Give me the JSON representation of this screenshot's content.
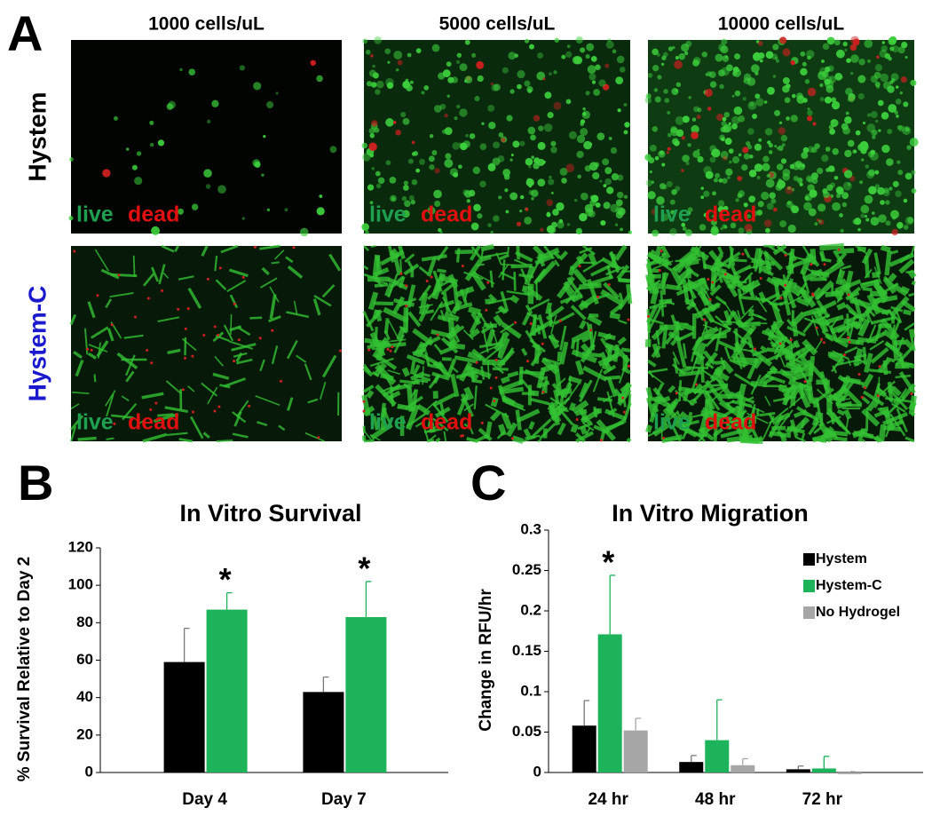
{
  "panel_a": {
    "label": "A",
    "columns": [
      "1000 cells/uL",
      "5000 cells/uL",
      "10000 cells/uL"
    ],
    "rows": [
      "Hystem",
      "Hystem-C"
    ],
    "image_labels": [
      [
        "live",
        "dead"
      ],
      [
        "live",
        "dead"
      ],
      [
        "live",
        "dead"
      ],
      [
        "live",
        "dead"
      ],
      [
        "live",
        "dead"
      ],
      [
        "live",
        "dead"
      ]
    ]
  },
  "chart_data": [
    {
      "type": "bar",
      "panel_label": "B",
      "title": "In Vitro Survival",
      "y_label": "% Survival Relative to Day 2",
      "categories": [
        "Day 4",
        "Day 7"
      ],
      "series": [
        {
          "color": "#000000",
          "values": [
            59,
            43
          ],
          "errors": [
            18,
            8
          ]
        },
        {
          "color": "#1db35a",
          "values": [
            87,
            83
          ],
          "errors": [
            9,
            19
          ]
        }
      ],
      "significance": [
        "*",
        "*"
      ],
      "ylim": [
        0,
        120
      ],
      "yticks": [
        0,
        20,
        40,
        60,
        80,
        100,
        120
      ]
    },
    {
      "type": "bar",
      "panel_label": "C",
      "title": "In Vitro Migration",
      "y_label": "Change in RFU/hr",
      "categories": [
        "24 hr",
        "48 hr",
        "72 hr"
      ],
      "series": [
        {
          "name": "Hystem",
          "color": "#000000",
          "values": [
            0.058,
            0.013,
            0.004
          ],
          "errors": [
            0.031,
            0.008,
            0.004
          ]
        },
        {
          "name": "Hystem-C",
          "color": "#1db35a",
          "values": [
            0.171,
            0.04,
            0.005
          ],
          "errors": [
            0.073,
            0.05,
            0.015
          ]
        },
        {
          "name": "No Hydrogel",
          "color": "#a6a6a6",
          "values": [
            0.052,
            0.009,
            -0.002
          ],
          "errors": [
            0.015,
            0.008,
            0.003
          ]
        }
      ],
      "significance": [
        "*",
        null,
        null
      ],
      "legend": "right",
      "ylim": [
        0,
        0.3
      ],
      "yticks": [
        0,
        0.05,
        0.1,
        0.15,
        0.2,
        0.25,
        0.3
      ]
    }
  ]
}
